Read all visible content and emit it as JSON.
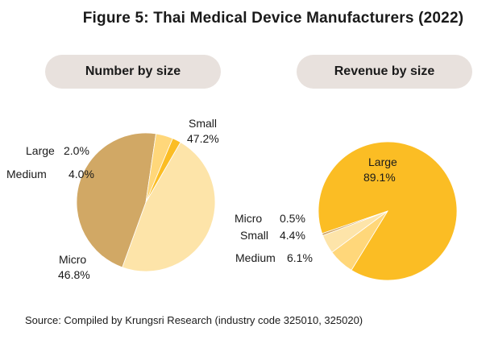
{
  "title": "Figure 5: Thai Medical Device Manufacturers (2022)",
  "source": "Source: Compiled by Krungsri Research (industry code 325010, 325020)",
  "chart_data": [
    {
      "type": "pie",
      "title": "Number by size",
      "slices": [
        {
          "label": "Small",
          "value": 47.2,
          "display": "47.2%",
          "color": "#fde4a9"
        },
        {
          "label": "Micro",
          "value": 46.8,
          "display": "46.8%",
          "color": "#d1a865"
        },
        {
          "label": "Medium",
          "value": 4.0,
          "display": "4.0%",
          "color": "#ffd77a"
        },
        {
          "label": "Large",
          "value": 2.0,
          "display": "2.0%",
          "color": "#fbbd24"
        }
      ]
    },
    {
      "type": "pie",
      "title": "Revenue by size",
      "slices": [
        {
          "label": "Large",
          "value": 89.1,
          "display": "89.1%",
          "color": "#fbbd24"
        },
        {
          "label": "Medium",
          "value": 6.1,
          "display": "6.1%",
          "color": "#ffd77a"
        },
        {
          "label": "Small",
          "value": 4.4,
          "display": "4.4%",
          "color": "#fde4a9"
        },
        {
          "label": "Micro",
          "value": 0.5,
          "display": "0.5%",
          "color": "#d1a865"
        }
      ]
    }
  ]
}
